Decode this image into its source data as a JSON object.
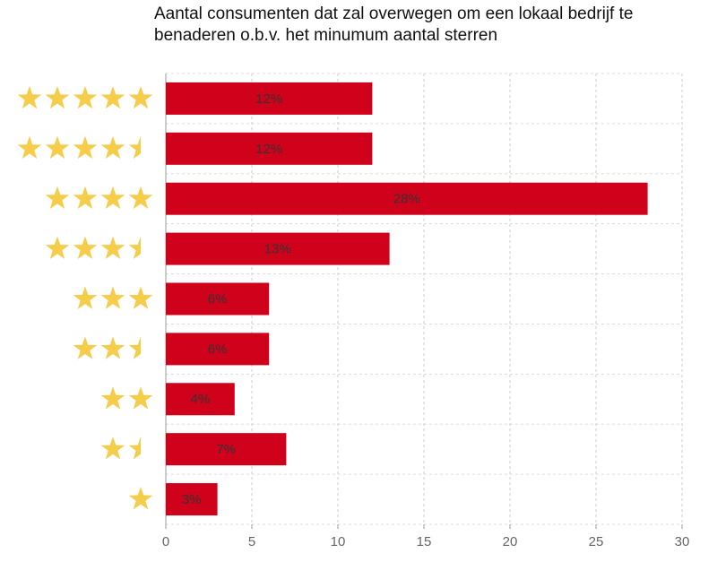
{
  "chart_data": {
    "type": "bar",
    "orientation": "horizontal",
    "title": "Aantal consumenten dat zal overwegen om een lokaal bedrijf te benaderen o.b.v. het minumum aantal sterren",
    "categories": [
      5,
      4.5,
      4,
      3.5,
      3,
      2.5,
      2,
      1.5,
      1
    ],
    "values": [
      12,
      12,
      28,
      13,
      6,
      6,
      4,
      7,
      3
    ],
    "value_labels": [
      "12%",
      "12%",
      "28%",
      "13%",
      "6%",
      "6%",
      "4%",
      "7%",
      "3%"
    ],
    "color": "#d0021b",
    "star_color": "#f5cd4a",
    "xlim": [
      0,
      30
    ],
    "xticks": [
      0,
      5,
      10,
      15,
      20,
      25,
      30
    ],
    "grid": true
  }
}
